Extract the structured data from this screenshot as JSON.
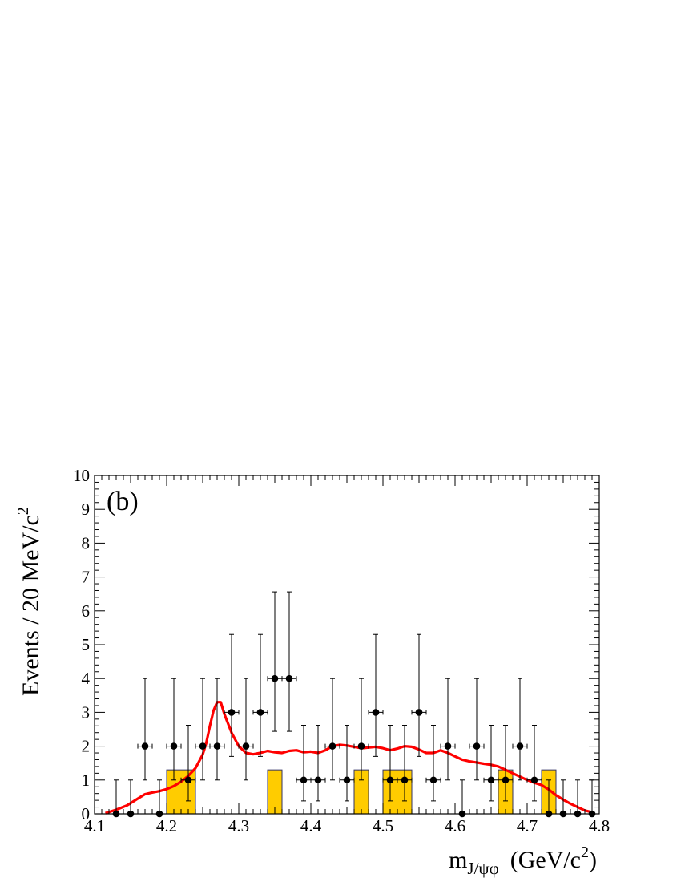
{
  "chart_data": {
    "type": "scatter",
    "panel_label": "(b)",
    "xlabel": {
      "main": "m",
      "sub": "J/ψφ",
      "unit_pre": "(GeV/c",
      "unit_sup": "2",
      "unit_post": ")"
    },
    "ylabel": {
      "main": "Events / 20 MeV/c",
      "sup": "2"
    },
    "xlim": [
      4.1,
      4.8
    ],
    "ylim": [
      0,
      10
    ],
    "x_ticks": [
      "4.1",
      "4.2",
      "4.3",
      "4.4",
      "4.5",
      "4.6",
      "4.7",
      "4.8"
    ],
    "y_ticks": [
      "0",
      "1",
      "2",
      "3",
      "4",
      "5",
      "6",
      "7",
      "8",
      "9",
      "10"
    ],
    "bin_width": 0.02,
    "data_points": {
      "x": [
        4.13,
        4.15,
        4.17,
        4.19,
        4.21,
        4.23,
        4.25,
        4.27,
        4.29,
        4.31,
        4.33,
        4.35,
        4.37,
        4.39,
        4.41,
        4.43,
        4.45,
        4.47,
        4.49,
        4.51,
        4.53,
        4.55,
        4.57,
        4.59,
        4.61,
        4.63,
        4.65,
        4.67,
        4.69,
        4.71,
        4.73,
        4.75,
        4.77,
        4.79
      ],
      "y": [
        0,
        0,
        2,
        0,
        2,
        1,
        2,
        2,
        3,
        2,
        3,
        4,
        4,
        1,
        1,
        2,
        1,
        2,
        3,
        1,
        1,
        3,
        1,
        2,
        0,
        2,
        1,
        1,
        2,
        1,
        0,
        0,
        0,
        0
      ]
    },
    "background_hist": {
      "bins": [
        [
          4.2,
          4.24
        ],
        [
          4.34,
          4.36
        ],
        [
          4.46,
          4.48
        ],
        [
          4.5,
          4.54
        ],
        [
          4.66,
          4.68
        ],
        [
          4.72,
          4.74
        ]
      ],
      "values": [
        1.3,
        1.3,
        1.3,
        1.3,
        1.3,
        1.3
      ],
      "color": "#FFCC00"
    },
    "fit_curve": {
      "color": "#FF0000",
      "x": [
        4.115,
        4.13,
        4.145,
        4.16,
        4.17,
        4.18,
        4.19,
        4.2,
        4.21,
        4.22,
        4.23,
        4.24,
        4.25,
        4.255,
        4.26,
        4.265,
        4.27,
        4.275,
        4.28,
        4.29,
        4.3,
        4.31,
        4.32,
        4.33,
        4.34,
        4.35,
        4.36,
        4.37,
        4.38,
        4.39,
        4.4,
        4.41,
        4.42,
        4.43,
        4.44,
        4.45,
        4.46,
        4.47,
        4.48,
        4.49,
        4.5,
        4.51,
        4.52,
        4.53,
        4.54,
        4.55,
        4.56,
        4.57,
        4.58,
        4.59,
        4.6,
        4.61,
        4.62,
        4.63,
        4.64,
        4.65,
        4.66,
        4.67,
        4.68,
        4.69,
        4.7,
        4.71,
        4.72,
        4.73,
        4.74,
        4.75,
        4.76,
        4.77,
        4.78,
        4.79
      ],
      "y": [
        0.02,
        0.12,
        0.25,
        0.45,
        0.58,
        0.63,
        0.67,
        0.73,
        0.82,
        0.95,
        1.12,
        1.35,
        1.75,
        2.1,
        2.6,
        3.05,
        3.3,
        3.3,
        2.95,
        2.4,
        2.0,
        1.8,
        1.76,
        1.8,
        1.86,
        1.82,
        1.8,
        1.86,
        1.88,
        1.82,
        1.84,
        1.8,
        1.88,
        2.0,
        2.04,
        2.02,
        1.98,
        1.94,
        1.96,
        1.98,
        1.94,
        1.88,
        1.93,
        2.0,
        1.98,
        1.9,
        1.8,
        1.8,
        1.88,
        1.8,
        1.7,
        1.6,
        1.55,
        1.52,
        1.48,
        1.45,
        1.4,
        1.3,
        1.2,
        1.1,
        1.0,
        0.92,
        0.85,
        0.72,
        0.55,
        0.42,
        0.3,
        0.2,
        0.1,
        0.05
      ]
    }
  }
}
